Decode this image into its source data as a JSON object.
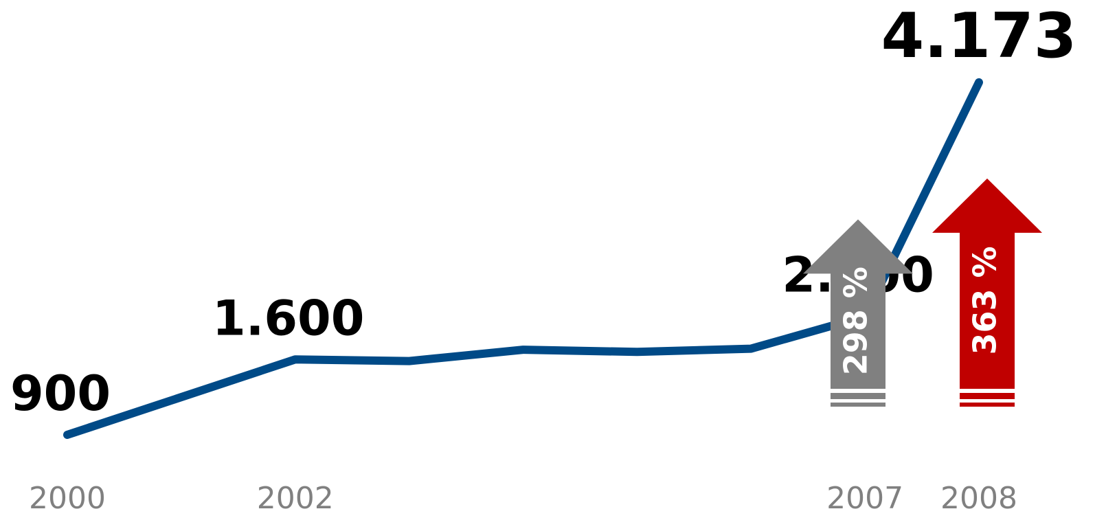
{
  "chart_data": {
    "type": "line",
    "x": [
      2000,
      2002,
      2003,
      2004,
      2005,
      2006,
      2007,
      2008
    ],
    "series": [
      {
        "color": "#004a87",
        "values": [
          900,
          1600,
          1585,
          1690,
          1670,
          1700,
          2000,
          4173
        ],
        "value_labels": [
          "900",
          "1.600",
          null,
          null,
          null,
          null,
          "2.000",
          "4.173"
        ]
      }
    ],
    "xlim": [
      2000,
      2008
    ],
    "xticks": [
      2000,
      2002,
      2007,
      2008
    ],
    "ylim": [
      600,
      4300
    ],
    "arrows": [
      {
        "value": 298,
        "label": "298 %",
        "color": "#808080"
      },
      {
        "value": 363,
        "label": "363 %",
        "color": "#c00000"
      }
    ]
  }
}
